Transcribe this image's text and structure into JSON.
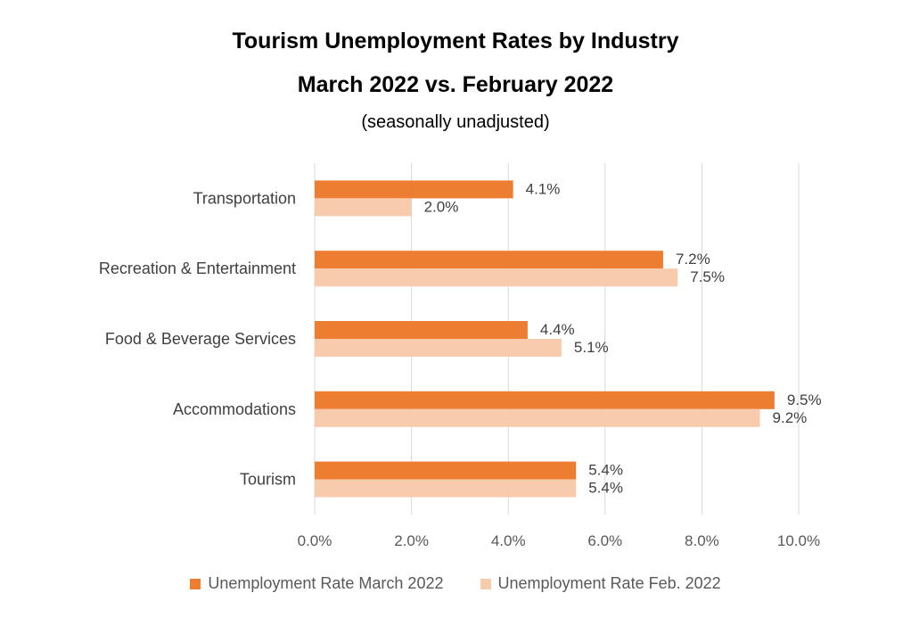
{
  "chart_data": {
    "type": "bar",
    "orientation": "horizontal",
    "title": "Tourism Unemployment Rates by Industry",
    "subtitle": "March 2022 vs. February 2022",
    "subtitle2": "(seasonally unadjusted)",
    "categories": [
      "Transportation",
      "Recreation & Entertainment",
      "Food & Beverage Services",
      "Accommodations",
      "Tourism"
    ],
    "series": [
      {
        "name": "Unemployment Rate March 2022",
        "values": [
          4.1,
          7.2,
          4.4,
          9.5,
          5.4
        ],
        "color": "#ED7D31"
      },
      {
        "name": "Unemployment Rate Feb. 2022",
        "values": [
          2.0,
          7.5,
          5.1,
          9.2,
          5.4
        ],
        "color": "#F8CBAD"
      }
    ],
    "data_labels": [
      [
        "4.1%",
        "7.2%",
        "4.4%",
        "9.5%",
        "5.4%"
      ],
      [
        "2.0%",
        "7.5%",
        "5.1%",
        "9.2%",
        "5.4%"
      ]
    ],
    "xlim": [
      0,
      10
    ],
    "xticks": [
      "0.0%",
      "2.0%",
      "4.0%",
      "6.0%",
      "8.0%",
      "10.0%"
    ],
    "xlabel": "",
    "ylabel": "",
    "grid": "vertical",
    "legend_position": "bottom",
    "gridline_color": "#D9D9D9"
  }
}
